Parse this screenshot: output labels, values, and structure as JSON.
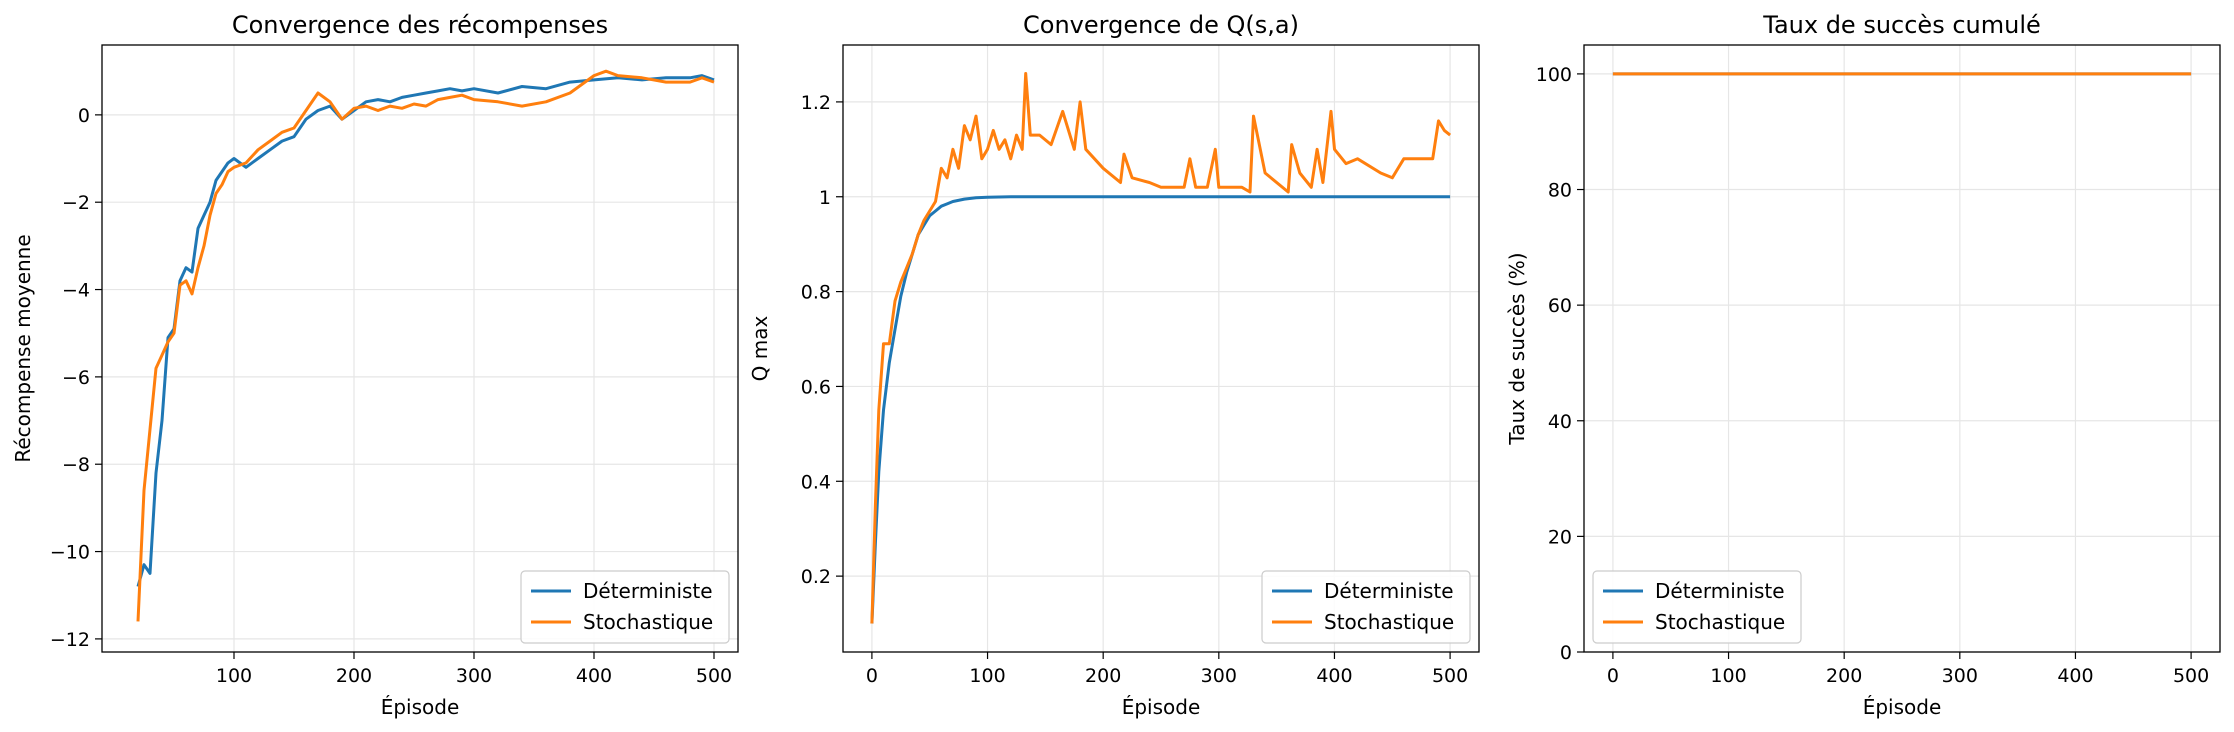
{
  "colors": {
    "deterministic": "#1f77b4",
    "stochastic": "#ff7f0e",
    "grid": "#e6e6e6"
  },
  "chart_data": [
    {
      "type": "line",
      "title": "Convergence des récompenses",
      "xlabel": "Épisode",
      "ylabel": "Récompense moyenne",
      "xlim": [
        -10,
        520
      ],
      "ylim": [
        -12.3,
        1.6
      ],
      "xticks": [
        100,
        200,
        300,
        400,
        500
      ],
      "yticks": [
        -12,
        -10,
        -8,
        -6,
        -4,
        -2,
        0
      ],
      "grid": true,
      "legend_position": "lower-right",
      "series": [
        {
          "name": "Déterministe",
          "color_key": "deterministic",
          "x": [
            20,
            25,
            30,
            35,
            40,
            45,
            50,
            55,
            60,
            65,
            70,
            75,
            80,
            85,
            90,
            95,
            100,
            110,
            120,
            130,
            140,
            150,
            160,
            170,
            180,
            190,
            200,
            210,
            220,
            230,
            240,
            250,
            260,
            270,
            280,
            290,
            300,
            320,
            340,
            360,
            380,
            400,
            420,
            440,
            460,
            480,
            490,
            500
          ],
          "y": [
            -10.8,
            -10.3,
            -10.5,
            -8.2,
            -7.0,
            -5.1,
            -4.9,
            -3.8,
            -3.5,
            -3.6,
            -2.6,
            -2.3,
            -2.0,
            -1.5,
            -1.3,
            -1.1,
            -1.0,
            -1.2,
            -1.0,
            -0.8,
            -0.6,
            -0.5,
            -0.1,
            0.1,
            0.2,
            -0.1,
            0.1,
            0.3,
            0.35,
            0.3,
            0.4,
            0.45,
            0.5,
            0.55,
            0.6,
            0.55,
            0.6,
            0.5,
            0.65,
            0.6,
            0.75,
            0.8,
            0.85,
            0.8,
            0.85,
            0.85,
            0.9,
            0.8
          ]
        },
        {
          "name": "Stochastique",
          "color_key": "stochastic",
          "x": [
            20,
            25,
            30,
            35,
            40,
            45,
            50,
            55,
            60,
            65,
            70,
            75,
            80,
            85,
            90,
            95,
            100,
            110,
            120,
            130,
            140,
            150,
            160,
            170,
            180,
            190,
            200,
            210,
            220,
            230,
            240,
            250,
            260,
            270,
            280,
            290,
            300,
            320,
            340,
            360,
            380,
            400,
            410,
            420,
            440,
            460,
            480,
            490,
            500
          ],
          "y": [
            -11.6,
            -8.6,
            -7.2,
            -5.8,
            -5.5,
            -5.2,
            -5.0,
            -3.9,
            -3.8,
            -4.1,
            -3.5,
            -3.0,
            -2.3,
            -1.8,
            -1.6,
            -1.3,
            -1.2,
            -1.1,
            -0.8,
            -0.6,
            -0.4,
            -0.3,
            0.1,
            0.5,
            0.3,
            -0.1,
            0.15,
            0.2,
            0.1,
            0.2,
            0.15,
            0.25,
            0.2,
            0.35,
            0.4,
            0.45,
            0.35,
            0.3,
            0.2,
            0.3,
            0.5,
            0.9,
            1.0,
            0.9,
            0.85,
            0.75,
            0.75,
            0.85,
            0.75
          ]
        }
      ]
    },
    {
      "type": "line",
      "title": "Convergence de Q(s,a)",
      "xlabel": "Épisode",
      "ylabel": "Q max",
      "xlim": [
        -25,
        525
      ],
      "ylim": [
        0.04,
        1.32
      ],
      "xticks": [
        0,
        100,
        200,
        300,
        400,
        500
      ],
      "yticks": [
        0.2,
        0.4,
        0.6,
        0.8,
        1.0,
        1.2
      ],
      "grid": true,
      "legend_position": "lower-right",
      "series": [
        {
          "name": "Déterministe",
          "color_key": "deterministic",
          "x": [
            0,
            3,
            6,
            10,
            15,
            20,
            25,
            30,
            35,
            40,
            45,
            50,
            55,
            60,
            65,
            70,
            80,
            90,
            100,
            120,
            150,
            200,
            250,
            300,
            350,
            400,
            450,
            500
          ],
          "y": [
            0.1,
            0.27,
            0.42,
            0.55,
            0.65,
            0.72,
            0.79,
            0.84,
            0.88,
            0.92,
            0.94,
            0.96,
            0.97,
            0.98,
            0.985,
            0.99,
            0.995,
            0.998,
            0.999,
            1.0,
            1.0,
            1.0,
            1.0,
            1.0,
            1.0,
            1.0,
            1.0,
            1.0
          ]
        },
        {
          "name": "Stochastique",
          "color_key": "stochastic",
          "x": [
            0,
            3,
            6,
            10,
            15,
            20,
            25,
            30,
            35,
            40,
            45,
            50,
            55,
            60,
            65,
            70,
            75,
            80,
            85,
            90,
            95,
            100,
            105,
            110,
            115,
            120,
            125,
            130,
            133,
            137,
            145,
            155,
            165,
            175,
            180,
            185,
            200,
            215,
            218,
            225,
            240,
            250,
            270,
            275,
            280,
            290,
            297,
            300,
            310,
            320,
            327,
            330,
            340,
            360,
            363,
            370,
            380,
            385,
            390,
            397,
            400,
            410,
            420,
            440,
            450,
            460,
            475,
            480,
            485,
            490,
            495,
            500
          ],
          "y": [
            0.1,
            0.35,
            0.55,
            0.69,
            0.69,
            0.78,
            0.82,
            0.85,
            0.88,
            0.92,
            0.95,
            0.97,
            0.99,
            1.06,
            1.04,
            1.1,
            1.06,
            1.15,
            1.12,
            1.17,
            1.08,
            1.1,
            1.14,
            1.1,
            1.12,
            1.08,
            1.13,
            1.1,
            1.26,
            1.13,
            1.13,
            1.11,
            1.18,
            1.1,
            1.2,
            1.1,
            1.06,
            1.03,
            1.09,
            1.04,
            1.03,
            1.02,
            1.02,
            1.08,
            1.02,
            1.02,
            1.1,
            1.02,
            1.02,
            1.02,
            1.01,
            1.17,
            1.05,
            1.01,
            1.11,
            1.05,
            1.02,
            1.1,
            1.03,
            1.18,
            1.1,
            1.07,
            1.08,
            1.05,
            1.04,
            1.08,
            1.08,
            1.08,
            1.08,
            1.16,
            1.14,
            1.13
          ]
        }
      ]
    },
    {
      "type": "line",
      "title": "Taux de succès cumulé",
      "xlabel": "Épisode",
      "ylabel": "Taux de succès (%)",
      "xlim": [
        -25,
        525
      ],
      "ylim": [
        0,
        105
      ],
      "xticks": [
        0,
        100,
        200,
        300,
        400,
        500
      ],
      "yticks": [
        0,
        20,
        40,
        60,
        80,
        100
      ],
      "grid": true,
      "legend_position": "lower-left",
      "series": [
        {
          "name": "Déterministe",
          "color_key": "deterministic",
          "x": [
            0,
            500
          ],
          "y": [
            100,
            100
          ]
        },
        {
          "name": "Stochastique",
          "color_key": "stochastic",
          "x": [
            0,
            500
          ],
          "y": [
            100,
            100
          ]
        }
      ]
    }
  ]
}
